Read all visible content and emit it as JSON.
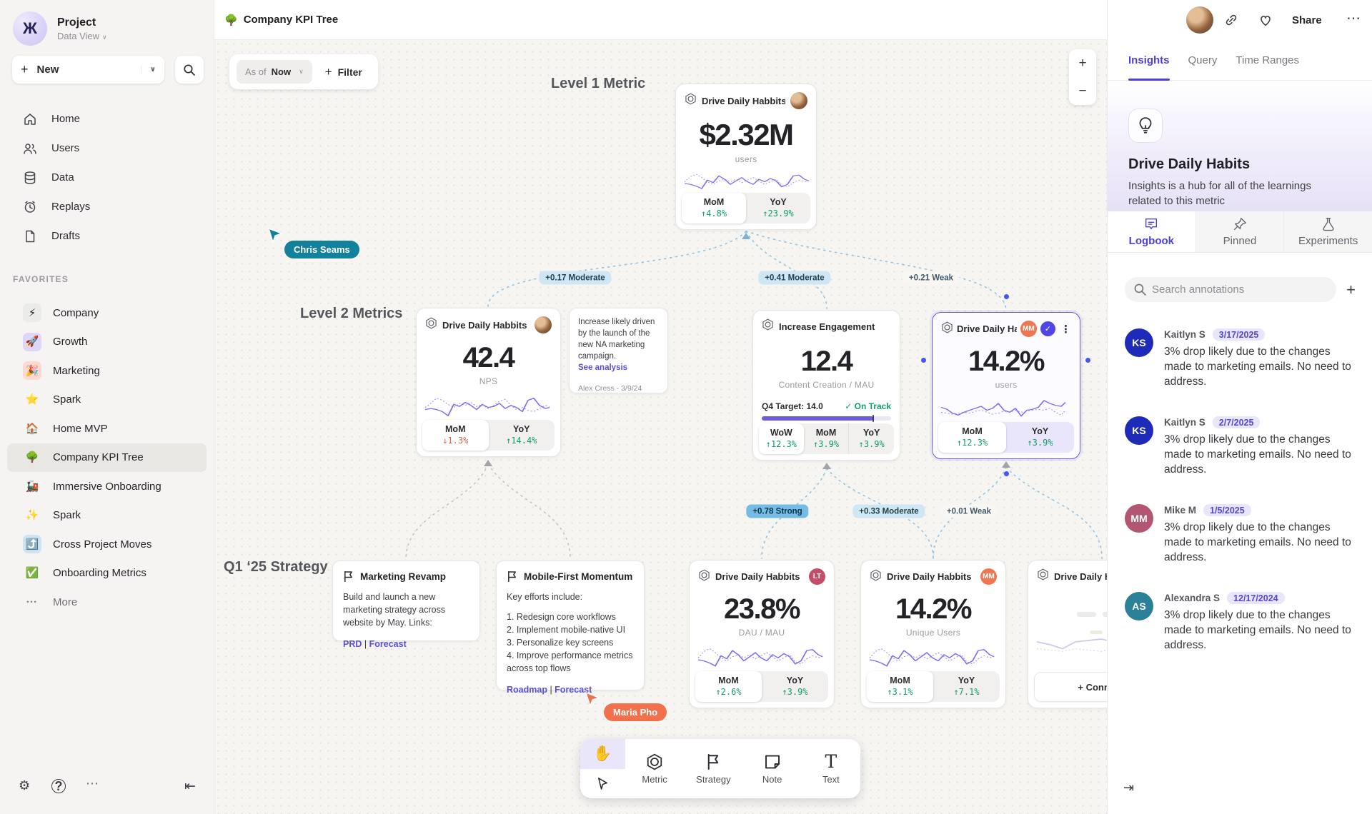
{
  "sidebar": {
    "project_name": "Project",
    "project_view": "Data View",
    "logo_glyph": "Ж",
    "new_label": "New",
    "nav": [
      {
        "label": "Home"
      },
      {
        "label": "Users"
      },
      {
        "label": "Data"
      },
      {
        "label": "Replays"
      },
      {
        "label": "Drafts"
      }
    ],
    "favorites_label": "FAVORITES",
    "favorites": [
      {
        "emoji": "⚡",
        "label": "Company",
        "tile": "#ebebe9"
      },
      {
        "emoji": "🚀",
        "label": "Growth",
        "tile": "#ddd6f8"
      },
      {
        "emoji": "🎉",
        "label": "Marketing",
        "tile": "#fcd9d3"
      },
      {
        "emoji": "⭐",
        "label": "Spark",
        "tile": "transparent"
      },
      {
        "emoji": "🏠",
        "label": "Home MVP",
        "tile": "transparent"
      },
      {
        "emoji": "🌳",
        "label": "Company KPI Tree",
        "tile": "transparent"
      },
      {
        "emoji": "🚂",
        "label": "Immersive Onboarding",
        "tile": "transparent"
      },
      {
        "emoji": "✨",
        "label": "Spark",
        "tile": "transparent"
      },
      {
        "emoji": "⤴️",
        "label": "Cross Project Moves",
        "tile": "#cfe3f3"
      },
      {
        "emoji": "✅",
        "label": "Onboarding Metrics",
        "tile": "transparent"
      }
    ],
    "more_label": "More"
  },
  "topbar": {
    "emoji": "🌳",
    "title": "Company KPI Tree"
  },
  "header": {
    "share_label": "Share",
    "menu_glyph": "⋯"
  },
  "canvas": {
    "asof_label": "As of",
    "asof_value": "Now",
    "filter_plus": "+",
    "filter_label": "Filter",
    "zoom_in": "+",
    "zoom_out": "−",
    "level1_label": "Level 1 Metric",
    "level2_label": "Level 2 Metrics",
    "strategy_label": "Q1 ‘25 Strategy",
    "cursors": [
      {
        "name": "Chris Seams",
        "color": "#12829C"
      },
      {
        "name": "Maria Pho",
        "color": "#F1714D"
      }
    ],
    "edge_labels": [
      {
        "text": "+0.17 Moderate",
        "kind": "moderate"
      },
      {
        "text": "+0.41 Moderate",
        "kind": "moderate"
      },
      {
        "text": "+0.21 Weak",
        "kind": "weak"
      },
      {
        "text": "+0.78 Strong",
        "kind": "strong"
      },
      {
        "text": "+0.33 Moderate",
        "kind": "moderate"
      },
      {
        "text": "+0.01 Weak",
        "kind": "weak"
      }
    ],
    "cards": {
      "level1": {
        "title": "Drive Daily Habbits",
        "value": "$2.32M",
        "unit": "users",
        "mom_label": "MoM",
        "mom": "↑4.8%",
        "yoy_label": "YoY",
        "yoy": "↑23.9%"
      },
      "nps": {
        "title": "Drive Daily Habbits",
        "value": "42.4",
        "unit": "NPS",
        "mom_label": "MoM",
        "mom": "↓1.3%",
        "yoy_label": "YoY",
        "yoy": "↑14.4%"
      },
      "engagement": {
        "title": "Increase Engagement",
        "value": "12.4",
        "unit": "Content Creation / MAU",
        "target_label": "Q4 Target: 14.0",
        "status": "✓ On Track",
        "progress_pct": 86,
        "wow_label": "WoW",
        "wow": "↑12.3%",
        "mom_label": "MoM",
        "mom": "↑3.9%",
        "yoy_label": "YoY",
        "yoy": "↑3.9%"
      },
      "selected": {
        "title": "Drive Daily Habb..",
        "badge": "MM",
        "check": "✓",
        "menu": "⋮",
        "value": "14.2%",
        "unit": "users",
        "mom_label": "MoM",
        "mom": "↑12.3%",
        "yoy_label": "YoY",
        "yoy": "↑3.9%"
      },
      "dau": {
        "title": "Drive Daily Habbits",
        "badge": "LT",
        "value": "23.8%",
        "unit": "DAU / MAU",
        "mom_label": "MoM",
        "mom": "↑2.6%",
        "yoy_label": "YoY",
        "yoy": "↑3.9%"
      },
      "unique": {
        "title": "Drive Daily Habbits",
        "badge": "MM",
        "value": "14.2%",
        "unit": "Unique Users",
        "mom_label": "MoM",
        "mom": "↑3.1%",
        "yoy_label": "YoY",
        "yoy": "↑7.1%"
      },
      "partial": {
        "title": "Drive Daily Hab",
        "connect_label": "+ Connect"
      }
    },
    "note": {
      "body": "Increase likely driven by the launch of the new NA marketing campaign.",
      "link": "See analysis",
      "author": "Alex Cress - 3/9/24"
    },
    "strategy1": {
      "title": "Marketing Revamp",
      "body": "Build and launch a new marketing strategy across website by May. Links:",
      "link1": "PRD",
      "sep": "|",
      "link2": "Forecast"
    },
    "strategy2": {
      "title": "Mobile-First Momentum",
      "intro": "Key efforts include:",
      "list": "1. Redesign core workflows\n2. Implement mobile-native UI\n3. Personalize key screens\n4. Improve performance metrics\n     across top flows",
      "link1": "Roadmap",
      "sep": "|",
      "link2": "Forecast"
    },
    "toolbar": {
      "tools": [
        {
          "label": "Metric"
        },
        {
          "label": "Strategy"
        },
        {
          "label": "Note"
        },
        {
          "label": "Text"
        }
      ],
      "text_glyph": "T",
      "hand_glyph": "✋"
    }
  },
  "panel": {
    "tabs": [
      "Insights",
      "Query",
      "Time Ranges"
    ],
    "title": "Drive Daily Habits",
    "description": "Insights is a hub for all of the learnings related to this metric",
    "subtabs": [
      "Logbook",
      "Pinned",
      "Experiments"
    ],
    "search_placeholder": "Search annotations",
    "add_label": "+",
    "collapse_glyph": "⇥",
    "annotations": [
      {
        "initials": "KS",
        "name": "Kaitlyn S",
        "date": "3/17/2025",
        "color": "#1E2BB8",
        "body": "3% drop likely due to the changes made to marketing emails. No need to address."
      },
      {
        "initials": "KS",
        "name": "Kaitlyn S",
        "date": "2/7/2025",
        "color": "#1E2BB8",
        "body": "3% drop likely due to the changes made to marketing emails. No need to address."
      },
      {
        "initials": "MM",
        "name": "Mike M",
        "date": "1/5/2025",
        "color": "#B25672",
        "body": "3% drop likely due to the changes made to marketing emails. No need to address."
      },
      {
        "initials": "AS",
        "name": "Alexandra S",
        "date": "12/17/2024",
        "color": "#2A7F99",
        "body": "3% drop likely due to the changes made to marketing emails. No need to address."
      }
    ]
  },
  "sparklines": {
    "a": {
      "solid": "2,32 10,34 18,38 26,44 34,24 42,30 50,14 58,22 66,34 74,26 82,18 90,28 98,34 106,22 114,28 122,20 130,26 138,40 146,34 154,14 162,12 170,22 176,26",
      "dotted": "2,28 10,16 18,10 26,18 34,28 42,34 50,26 58,22 66,28 74,22 82,30 90,24 98,18 106,26 114,34 122,28 130,22 138,36 146,40 154,30 162,24 170,28 176,26"
    },
    "b": {
      "solid": "2,24 10,28 18,36 26,40 34,34 42,30 50,26 58,22 66,30 74,26 82,16 90,30 98,34 106,26 114,42 122,30 130,28 138,24 146,10 154,16 162,20 170,22 176,14",
      "dotted": "2,34 10,36 18,38 26,36 34,34 42,36 50,32 58,30 66,34 74,38 82,36 90,32 98,34 106,30 114,34 122,32 130,30 138,28 146,30 154,26 162,34 170,40 176,30"
    },
    "c": {
      "solid": "2,34 10,32 18,34 26,38 34,46 42,24 50,28 58,20 66,26 74,34 82,24 90,30 98,28 106,22 114,32 122,26 130,30 138,38 146,16 154,12 162,26 170,32 176,30",
      "dotted": "2,30 10,22 18,12 26,16 34,24 42,30 50,22 58,26 66,20 74,28 82,24 90,32 98,26 106,18 114,14 122,26 130,34 138,30 146,36 154,38 162,32 170,26 176,28"
    },
    "f": {
      "solid": "2,30 20,34 38,40 56,30 74,28 92,26 110,30 128,24 146,34 164,22 176,26",
      "dotted": "2,40 20,42 38,44 56,40 74,42 92,44 110,40 128,42 146,44 164,42 176,44"
    }
  }
}
